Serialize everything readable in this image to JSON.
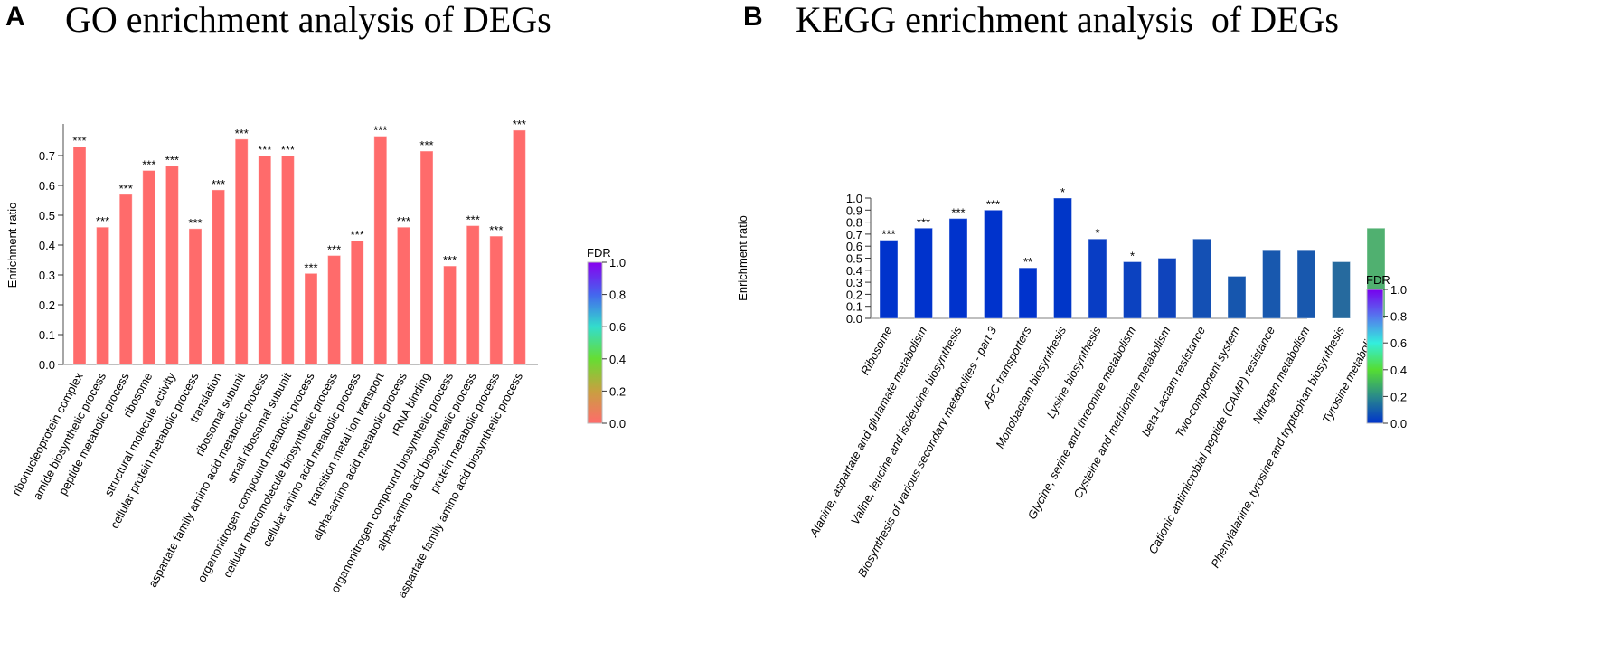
{
  "chart_data": [
    {
      "type": "bar",
      "panel": "A",
      "title": "GO enrichment analysis of DEGs",
      "ylabel": "Enrichment ratio",
      "ylim": [
        0,
        0.8
      ],
      "yticks": [
        "0.0",
        "0.1",
        "0.2",
        "0.3",
        "0.4",
        "0.5",
        "0.6",
        "0.7"
      ],
      "categories": [
        "ribonucleoprotein complex",
        "amide biosynthetic process",
        "peptide metabolic process",
        "ribosome",
        "structural molecule activity",
        "cellular protein metabolic process",
        "translation",
        "ribosomal subunit",
        "aspartate family amino acid metabolic process",
        "small ribosomal subunit",
        "organonitrogen compound metabolic process",
        "cellular macromolecule biosynthetic process",
        "cellular amino acid metabolic process",
        "transition metal ion transport",
        "alpha-amino acid metabolic process",
        "rRNA binding",
        "organonitrogen compound biosynthetic process",
        "alpha-amino acid biosynthetic process",
        "protein metabolic process",
        "aspartate family amino acid biosynthetic process"
      ],
      "values": [
        0.73,
        0.46,
        0.57,
        0.65,
        0.665,
        0.455,
        0.585,
        0.755,
        0.7,
        0.7,
        0.305,
        0.365,
        0.415,
        0.765,
        0.46,
        0.715,
        0.33,
        0.465,
        0.43,
        0.785
      ],
      "fdr": [
        0,
        0,
        0,
        0,
        0,
        0,
        0,
        0,
        0,
        0,
        0,
        0,
        0,
        0,
        0,
        0,
        0,
        0,
        0,
        0
      ],
      "significance": [
        "***",
        "***",
        "***",
        "***",
        "***",
        "***",
        "***",
        "***",
        "***",
        "***",
        "***",
        "***",
        "***",
        "***",
        "***",
        "***",
        "***",
        "***",
        "***",
        "***"
      ],
      "colorbar": {
        "label": "FDR",
        "ticks": [
          "0.0",
          "0.2",
          "0.4",
          "0.6",
          "0.8",
          "1.0"
        ],
        "colors": [
          "#ff6b6b",
          "#c8a040",
          "#66dd33",
          "#33ddcc",
          "#4466ee",
          "#8800ee"
        ]
      }
    },
    {
      "type": "bar",
      "panel": "B",
      "title": "KEGG enrichment analysis  of DEGs",
      "ylabel": "Enrichment ratio",
      "ylim": [
        0,
        1.0
      ],
      "yticks": [
        "0.0",
        "0.1",
        "0.2",
        "0.3",
        "0.4",
        "0.5",
        "0.6",
        "0.7",
        "0.8",
        "0.9",
        "1.0"
      ],
      "categories": [
        "Ribosome",
        "Alanine, aspartate and glutamate metabolism",
        "Valine, leucine and isoleucine biosynthesis",
        "Biosynthesis of various secondary metabolites - part 3",
        "ABC transporters",
        "Monobactam biosynthesis",
        "Lysine biosynthesis",
        "Glycine, serine and threonine metabolism",
        "Cysteine and methionine metabolism",
        "beta-Lactam resistance",
        "Two-component system",
        "Cationic antimicrobial peptide (CAMP) resistance",
        "Nitrogen metabolism",
        "Phenylalanine, tyrosine and tryptophan biosynthesis",
        "Tyrosine metabolism"
      ],
      "values": [
        0.65,
        0.75,
        0.83,
        0.9,
        0.42,
        1.0,
        0.66,
        0.47,
        0.5,
        0.66,
        0.35,
        0.57,
        0.57,
        0.47,
        0.75
      ],
      "bar_colors": [
        "#0033cc",
        "#0033cc",
        "#0033cc",
        "#0033cc",
        "#0033cc",
        "#0036c8",
        "#083dc4",
        "#0c42c0",
        "#0f44bc",
        "#1450b4",
        "#1656ae",
        "#1858ae",
        "#1858ae",
        "#266a9e",
        "#50b070"
      ],
      "significance": [
        "***",
        "***",
        "***",
        "***",
        "**",
        "*",
        "*",
        "*",
        "",
        "",
        "",
        "",
        "",
        "",
        ""
      ],
      "colorbar": {
        "label": "FDR",
        "ticks": [
          "0.0",
          "0.2",
          "0.4",
          "0.6",
          "0.8",
          "1.0"
        ],
        "colors": [
          "#0033cc",
          "#2a8a8a",
          "#55dd33",
          "#33eedd",
          "#5577ee",
          "#7700ee"
        ]
      }
    }
  ]
}
